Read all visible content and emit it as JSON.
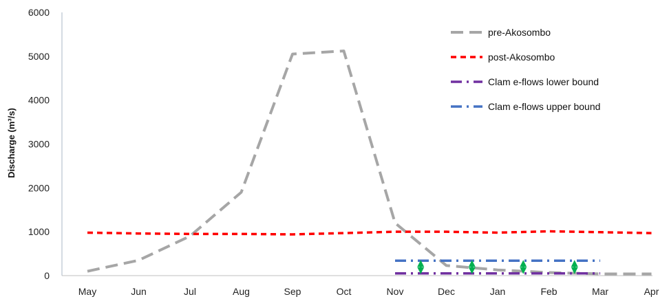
{
  "chart_data": {
    "type": "line",
    "title": "",
    "xlabel": "",
    "ylabel": "Discharge (m³/s)",
    "ylim": [
      0,
      6000
    ],
    "yticks": [
      "0",
      "1000",
      "2000",
      "3000",
      "4000",
      "5000",
      "6000"
    ],
    "grid": false,
    "legend_position": "top-right",
    "categories": [
      "May",
      "Jun",
      "Jul",
      "Aug",
      "Sep",
      "Oct",
      "Nov",
      "Dec",
      "Jan",
      "Feb",
      "Mar",
      "Apr"
    ],
    "series": [
      {
        "name": "pre-Akosombo",
        "color": "#A6A6A6",
        "style": "long-dash",
        "values": [
          100,
          350,
          900,
          1900,
          5050,
          5120,
          1200,
          230,
          130,
          70,
          40,
          40
        ]
      },
      {
        "name": "post-Akosombo",
        "color": "#FF0000",
        "style": "short-dash",
        "values": [
          980,
          960,
          950,
          950,
          940,
          970,
          1000,
          1000,
          980,
          1010,
          990,
          970
        ]
      },
      {
        "name": "Clam e-flows lower bound",
        "color": "#7030A0",
        "style": "dash-dot",
        "x": [
          "Nov",
          "Dec",
          "Jan",
          "Feb",
          "Mar"
        ],
        "values": [
          50,
          50,
          50,
          50,
          50
        ]
      },
      {
        "name": "Clam e-flows upper bound",
        "color": "#4472C4",
        "style": "dash-dot",
        "x": [
          "Nov",
          "Dec",
          "Jan",
          "Feb",
          "Mar"
        ],
        "values": [
          340,
          340,
          340,
          340,
          340
        ]
      }
    ],
    "annotations": {
      "range_arrows": {
        "icon": "double-headed-arrow",
        "color": "#00B050",
        "positions": [
          "mid Nov-Dec",
          "mid Dec-Jan",
          "mid Jan-Feb",
          "mid Feb-Mar"
        ],
        "from": 50,
        "to": 340
      }
    }
  }
}
